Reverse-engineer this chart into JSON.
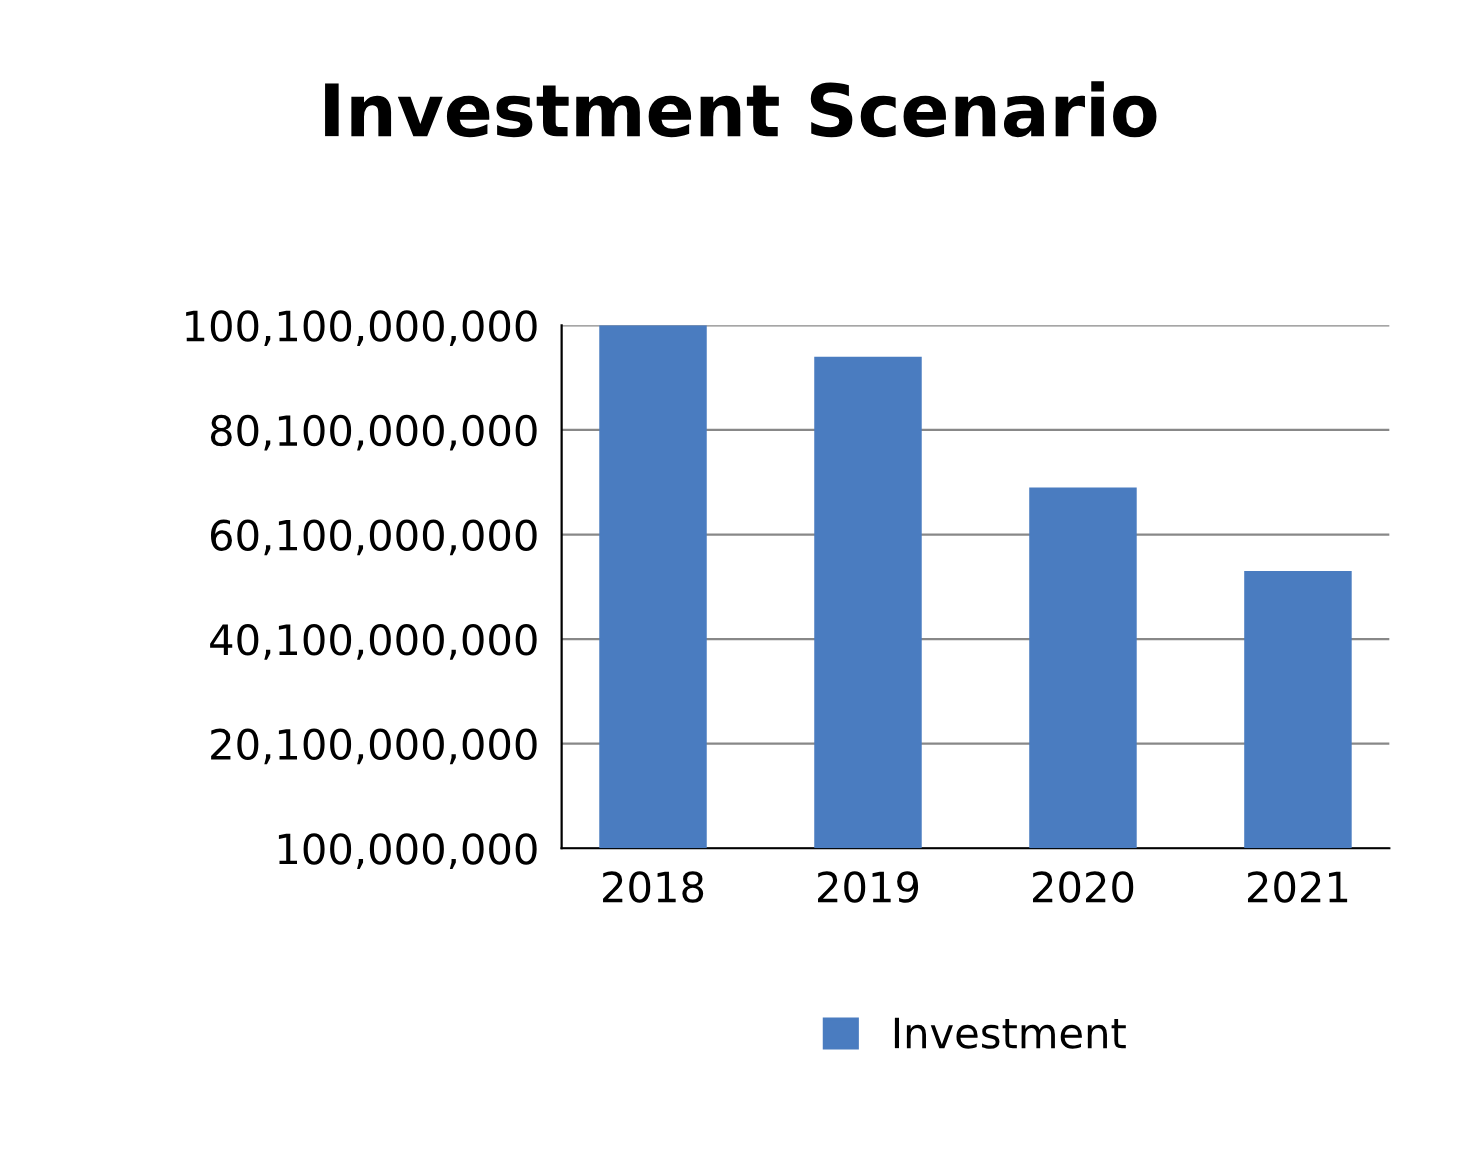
{
  "chart_data": {
    "type": "bar",
    "title": "Investment Scenario",
    "categories": [
      "2018",
      "2019",
      "2020",
      "2021"
    ],
    "series": [
      {
        "name": "Investment",
        "color": "#4a7cc0",
        "values": [
          100000000000,
          94000000000,
          69000000000,
          53000000000
        ]
      }
    ],
    "ylim": [
      100000000,
      100100000000
    ],
    "yticks": [
      {
        "value": 100000000,
        "label": "100,000,000"
      },
      {
        "value": 20100000000,
        "label": "20,100,000,000"
      },
      {
        "value": 40100000000,
        "label": "40,100,000,000"
      },
      {
        "value": 60100000000,
        "label": "60,100,000,000"
      },
      {
        "value": 80100000000,
        "label": "80,100,000,000"
      },
      {
        "value": 100100000000,
        "label": "100,100,000,000"
      }
    ],
    "grid": "y",
    "legend": "bottom"
  }
}
